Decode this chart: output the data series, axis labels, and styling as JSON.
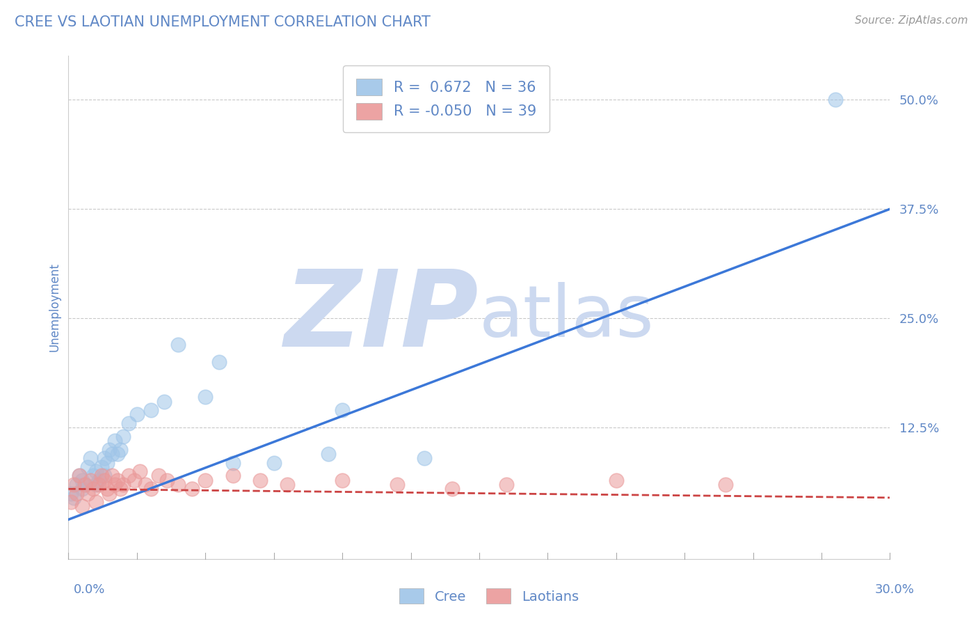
{
  "title": "CREE VS LAOTIAN UNEMPLOYMENT CORRELATION CHART",
  "source": "Source: ZipAtlas.com",
  "ylabel": "Unemployment",
  "xlim": [
    0.0,
    0.3
  ],
  "ylim": [
    -0.025,
    0.55
  ],
  "legend_r_cree": " 0.672",
  "legend_n_cree": "36",
  "legend_r_laotian": "-0.050",
  "legend_n_laotian": "39",
  "cree_color": "#9fc5e8",
  "laotian_color": "#ea9999",
  "cree_line_color": "#3c78d8",
  "laotian_line_color": "#cc4444",
  "label_color": "#6088c6",
  "watermark_color": "#ccd9f0",
  "background_color": "#ffffff",
  "grid_color": "#bbbbbb",
  "cree_x": [
    0.001,
    0.002,
    0.003,
    0.004,
    0.005,
    0.005,
    0.006,
    0.007,
    0.008,
    0.009,
    0.01,
    0.01,
    0.011,
    0.012,
    0.013,
    0.013,
    0.014,
    0.015,
    0.016,
    0.017,
    0.018,
    0.019,
    0.02,
    0.022,
    0.025,
    0.03,
    0.035,
    0.04,
    0.05,
    0.055,
    0.06,
    0.075,
    0.1,
    0.13,
    0.28,
    0.095
  ],
  "cree_y": [
    0.05,
    0.045,
    0.06,
    0.07,
    0.055,
    0.065,
    0.06,
    0.08,
    0.09,
    0.07,
    0.075,
    0.06,
    0.065,
    0.08,
    0.07,
    0.09,
    0.085,
    0.1,
    0.095,
    0.11,
    0.095,
    0.1,
    0.115,
    0.13,
    0.14,
    0.145,
    0.155,
    0.22,
    0.16,
    0.2,
    0.085,
    0.085,
    0.145,
    0.09,
    0.5,
    0.095
  ],
  "laotian_x": [
    0.001,
    0.002,
    0.003,
    0.004,
    0.005,
    0.006,
    0.007,
    0.008,
    0.009,
    0.01,
    0.011,
    0.012,
    0.013,
    0.014,
    0.015,
    0.016,
    0.017,
    0.018,
    0.019,
    0.02,
    0.022,
    0.024,
    0.026,
    0.028,
    0.03,
    0.033,
    0.036,
    0.04,
    0.045,
    0.05,
    0.06,
    0.07,
    0.08,
    0.1,
    0.12,
    0.14,
    0.16,
    0.2,
    0.24
  ],
  "laotian_y": [
    0.04,
    0.06,
    0.05,
    0.07,
    0.035,
    0.06,
    0.05,
    0.065,
    0.055,
    0.04,
    0.06,
    0.07,
    0.065,
    0.055,
    0.05,
    0.07,
    0.06,
    0.065,
    0.055,
    0.06,
    0.07,
    0.065,
    0.075,
    0.06,
    0.055,
    0.07,
    0.065,
    0.06,
    0.055,
    0.065,
    0.07,
    0.065,
    0.06,
    0.065,
    0.06,
    0.055,
    0.06,
    0.065,
    0.06
  ]
}
